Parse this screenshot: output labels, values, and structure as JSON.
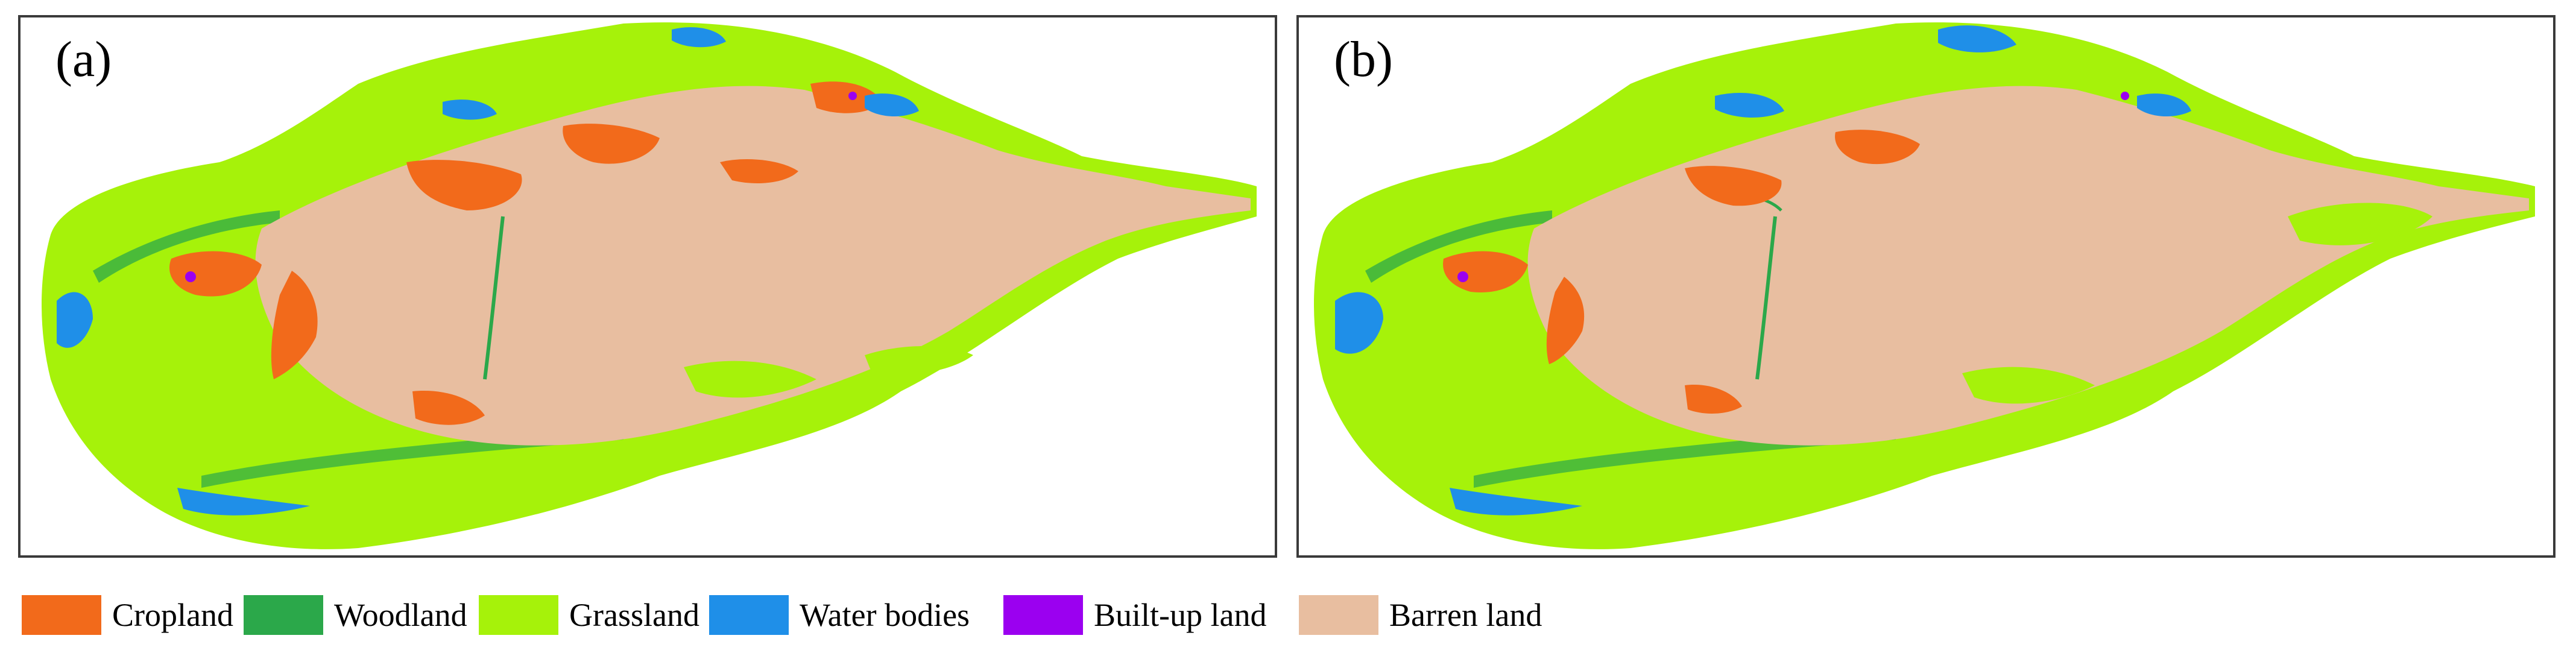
{
  "panels": [
    {
      "label": "(a)"
    },
    {
      "label": "(b)"
    }
  ],
  "land_cover_classes": [
    {
      "name": "Cropland",
      "color": "#f26a1b"
    },
    {
      "name": "Woodland",
      "color": "#2ba84a"
    },
    {
      "name": "Grassland",
      "color": "#a6f20a"
    },
    {
      "name": "Water bodies",
      "color": "#1f8fe8"
    },
    {
      "name": "Built-up land",
      "color": "#9b00f0"
    },
    {
      "name": "Barren land",
      "color": "#e8bea0"
    }
  ]
}
